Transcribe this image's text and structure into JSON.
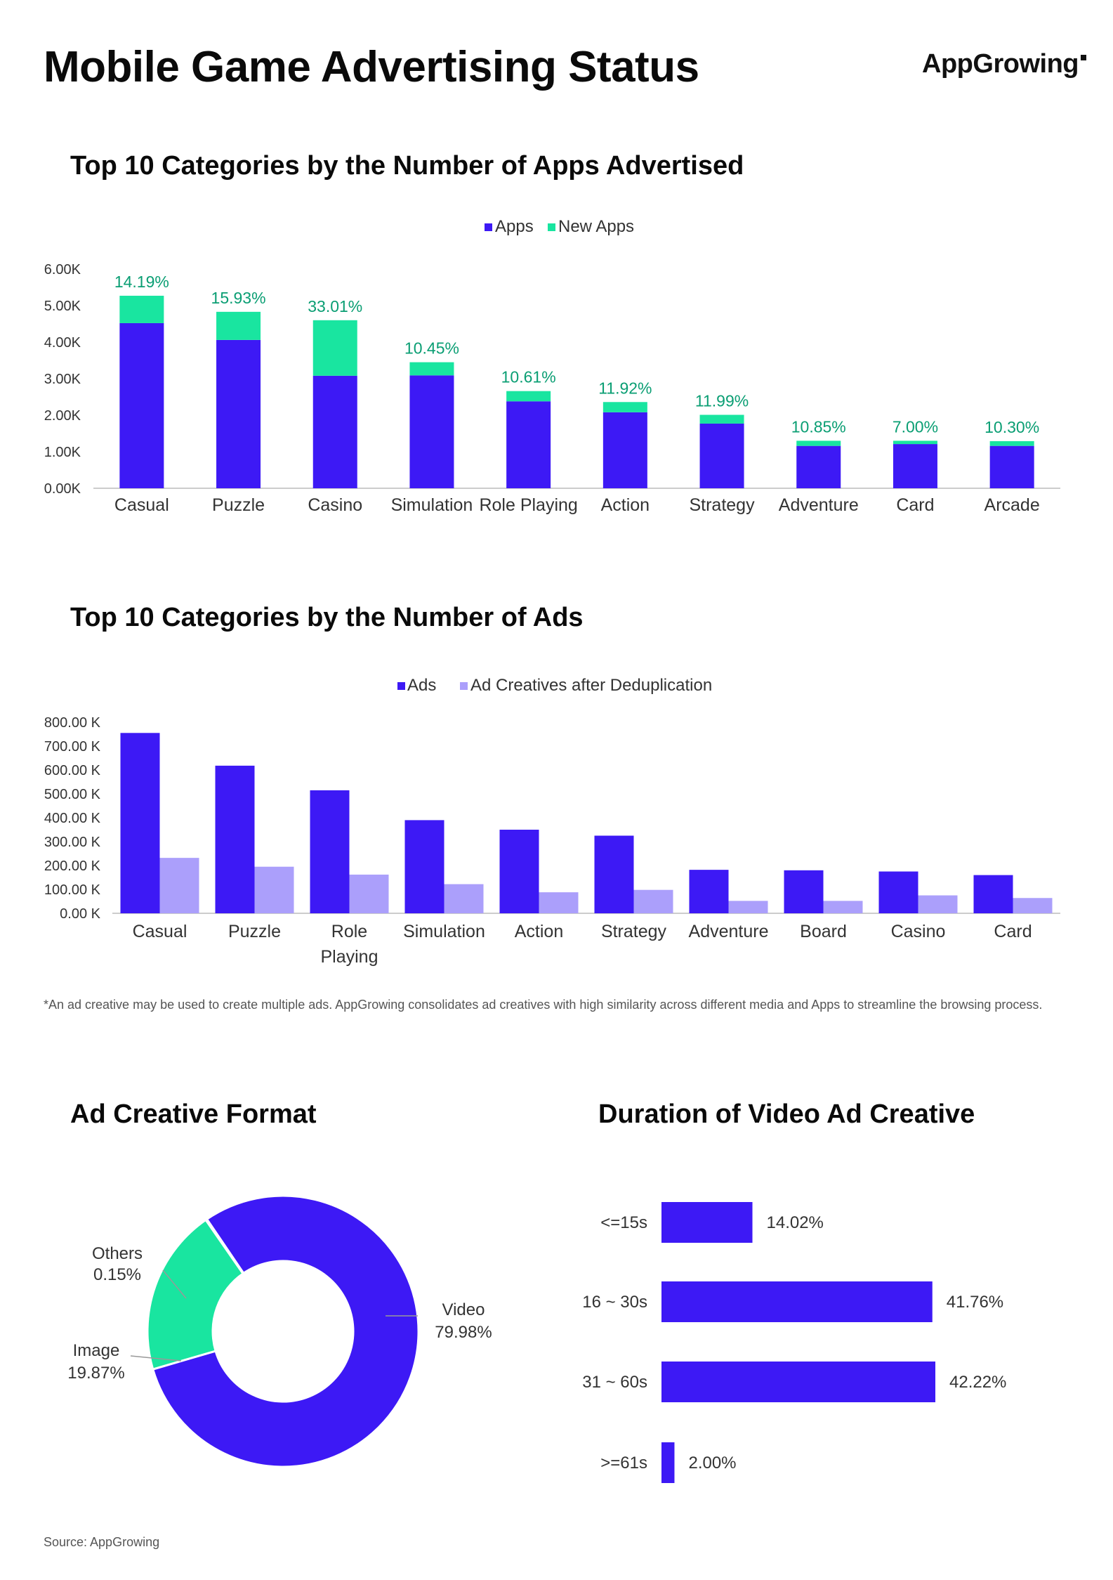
{
  "page": {
    "title": "Mobile Game Advertising Status",
    "logo": "AppGrowing",
    "footnote": "*An ad creative may be used to create multiple ads. AppGrowing consolidates ad creatives with high similarity across different media and Apps to streamline the browsing process.",
    "source": "Source: AppGrowing",
    "colors": {
      "primary": "#3d19f5",
      "green": "#19e5a0",
      "lavender": "#ab9ffb",
      "label_green": "#0a9e73"
    }
  },
  "chart_data": [
    {
      "type": "bar",
      "stacked": true,
      "title": "Top 10 Categories by the Number of Apps Advertised",
      "categories": [
        "Casual",
        "Puzzle",
        "Casino",
        "Simulation",
        "Role Playing",
        "Action",
        "Strategy",
        "Adventure",
        "Card",
        "Arcade"
      ],
      "series": [
        {
          "name": "Apps",
          "color": "#3d19f5",
          "values": [
            4520,
            4060,
            3080,
            3090,
            2380,
            2080,
            1770,
            1160,
            1210,
            1160
          ]
        },
        {
          "name": "New Apps",
          "color": "#19e5a0",
          "values": [
            750,
            770,
            1520,
            360,
            280,
            280,
            240,
            140,
            90,
            130
          ]
        }
      ],
      "data_labels": [
        "14.19%",
        "15.93%",
        "33.01%",
        "10.45%",
        "10.61%",
        "11.92%",
        "11.99%",
        "10.85%",
        "7.00%",
        "10.30%"
      ],
      "yticks": [
        "0.00K",
        "1.00K",
        "2.00K",
        "3.00K",
        "4.00K",
        "5.00K",
        "6.00K"
      ],
      "ylim": [
        0,
        6000
      ],
      "legend": "top-center"
    },
    {
      "type": "bar",
      "title": "Top 10 Categories by the Number of Ads",
      "categories": [
        "Casual",
        "Puzzle",
        "Role Playing",
        "Simulation",
        "Action",
        "Strategy",
        "Adventure",
        "Board",
        "Casino",
        "Card"
      ],
      "series": [
        {
          "name": "Ads",
          "color": "#3d19f5",
          "values": [
            755,
            618,
            515,
            390,
            350,
            325,
            182,
            180,
            175,
            160
          ]
        },
        {
          "name": "Ad Creatives after Deduplication",
          "color": "#ab9ffb",
          "values": [
            232,
            195,
            162,
            122,
            88,
            98,
            52,
            52,
            75,
            64
          ]
        }
      ],
      "yticks": [
        "0.00 K",
        "100.00 K",
        "200.00 K",
        "300.00 K",
        "400.00 K",
        "500.00 K",
        "600.00 K",
        "700.00 K",
        "800.00 K"
      ],
      "ylim": [
        0,
        800
      ],
      "legend": "top-center"
    },
    {
      "type": "pie",
      "donut": true,
      "title": "Ad Creative Format",
      "slices": [
        {
          "label": "Video",
          "value": 79.98,
          "pct": "79.98%",
          "color": "#3d19f5"
        },
        {
          "label": "Image",
          "value": 19.87,
          "pct": "19.87%",
          "color": "#19e5a0"
        },
        {
          "label": "Others",
          "value": 0.15,
          "pct": "0.15%",
          "color": "#7a63f7"
        }
      ]
    },
    {
      "type": "bar",
      "orientation": "horizontal",
      "title": "Duration of Video Ad Creative",
      "categories": [
        "<=15s",
        "16 ~ 30s",
        "31 ~ 60s",
        ">=61s"
      ],
      "values": [
        14.02,
        41.76,
        42.22,
        2.0
      ],
      "data_labels": [
        "14.02%",
        "41.76%",
        "42.22%",
        "2.00%"
      ],
      "color": "#3d19f5"
    }
  ]
}
